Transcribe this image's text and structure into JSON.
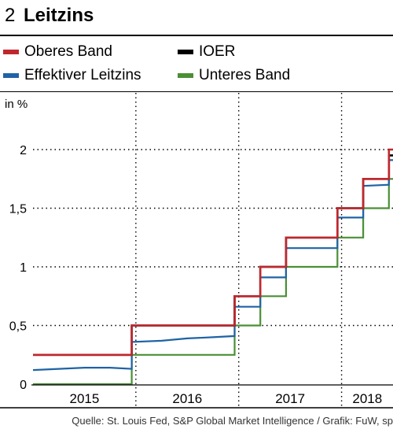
{
  "header": {
    "number": "2",
    "title": "Leitzins"
  },
  "legend": {
    "oberes": "Oberes Band",
    "ioer": "IOER",
    "effektiv": "Effektiver Leitzins",
    "unteres": "Unteres Band"
  },
  "source": "Quelle: St. Louis Fed, S&P Global Market Intelligence / Grafik: FuW, sp",
  "chart_data": {
    "type": "line",
    "ylabel": "in %",
    "xlim": [
      2015.0,
      2018.5
    ],
    "ylim": [
      0,
      2.0
    ],
    "yticks": [
      {
        "value": 0,
        "label": "0"
      },
      {
        "value": 0.5,
        "label": "0,5"
      },
      {
        "value": 1,
        "label": "1"
      },
      {
        "value": 1.5,
        "label": "1,5"
      },
      {
        "value": 2,
        "label": "2"
      }
    ],
    "year_labels": [
      {
        "label": "2015",
        "center": 2015.5
      },
      {
        "label": "2016",
        "center": 2016.5
      },
      {
        "label": "2017",
        "center": 2017.5
      },
      {
        "label": "2018",
        "center": 2018.25
      }
    ],
    "year_dividers": [
      2016,
      2017,
      2018
    ],
    "grid": true,
    "legend_position": "top",
    "series": [
      {
        "name": "Oberes Band",
        "key": "oberes",
        "color": "#c0272d",
        "x": [
          2015.0,
          2015.96,
          2015.96,
          2016.96,
          2016.96,
          2017.21,
          2017.21,
          2017.46,
          2017.46,
          2017.96,
          2017.96,
          2018.21,
          2018.21,
          2018.46,
          2018.46,
          2018.5
        ],
        "y": [
          0.25,
          0.25,
          0.5,
          0.5,
          0.75,
          0.75,
          1.0,
          1.0,
          1.25,
          1.25,
          1.5,
          1.5,
          1.75,
          1.75,
          2.0,
          2.0
        ]
      },
      {
        "name": "IOER",
        "key": "ioer",
        "color": "#000000",
        "x": [
          2015.0,
          2015.96,
          2015.96,
          2016.96,
          2016.96,
          2017.21,
          2017.21,
          2017.46,
          2017.46,
          2017.96,
          2017.96,
          2018.21,
          2018.21,
          2018.46,
          2018.46,
          2018.5
        ],
        "y": [
          0.25,
          0.25,
          0.5,
          0.5,
          0.75,
          0.75,
          1.0,
          1.0,
          1.25,
          1.25,
          1.5,
          1.5,
          1.75,
          1.75,
          1.95,
          1.95
        ]
      },
      {
        "name": "Effektiver Leitzins",
        "key": "effektiv",
        "color": "#1f63a5",
        "x": [
          2015.0,
          2015.25,
          2015.5,
          2015.75,
          2015.96,
          2015.96,
          2016.25,
          2016.5,
          2016.75,
          2016.96,
          2016.96,
          2017.21,
          2017.21,
          2017.46,
          2017.46,
          2017.96,
          2017.96,
          2018.21,
          2018.21,
          2018.46,
          2018.46,
          2018.5
        ],
        "y": [
          0.12,
          0.13,
          0.14,
          0.14,
          0.13,
          0.36,
          0.37,
          0.39,
          0.4,
          0.41,
          0.66,
          0.66,
          0.91,
          0.91,
          1.16,
          1.16,
          1.42,
          1.42,
          1.69,
          1.7,
          1.91,
          1.91
        ]
      },
      {
        "name": "Unteres Band",
        "key": "unteres",
        "color": "#4a8f35",
        "x": [
          2015.0,
          2015.96,
          2015.96,
          2016.96,
          2016.96,
          2017.21,
          2017.21,
          2017.46,
          2017.46,
          2017.96,
          2017.96,
          2018.21,
          2018.21,
          2018.46,
          2018.46,
          2018.5
        ],
        "y": [
          0.0,
          0.0,
          0.25,
          0.25,
          0.5,
          0.5,
          0.75,
          0.75,
          1.0,
          1.0,
          1.25,
          1.25,
          1.5,
          1.5,
          1.75,
          1.75
        ]
      }
    ]
  }
}
